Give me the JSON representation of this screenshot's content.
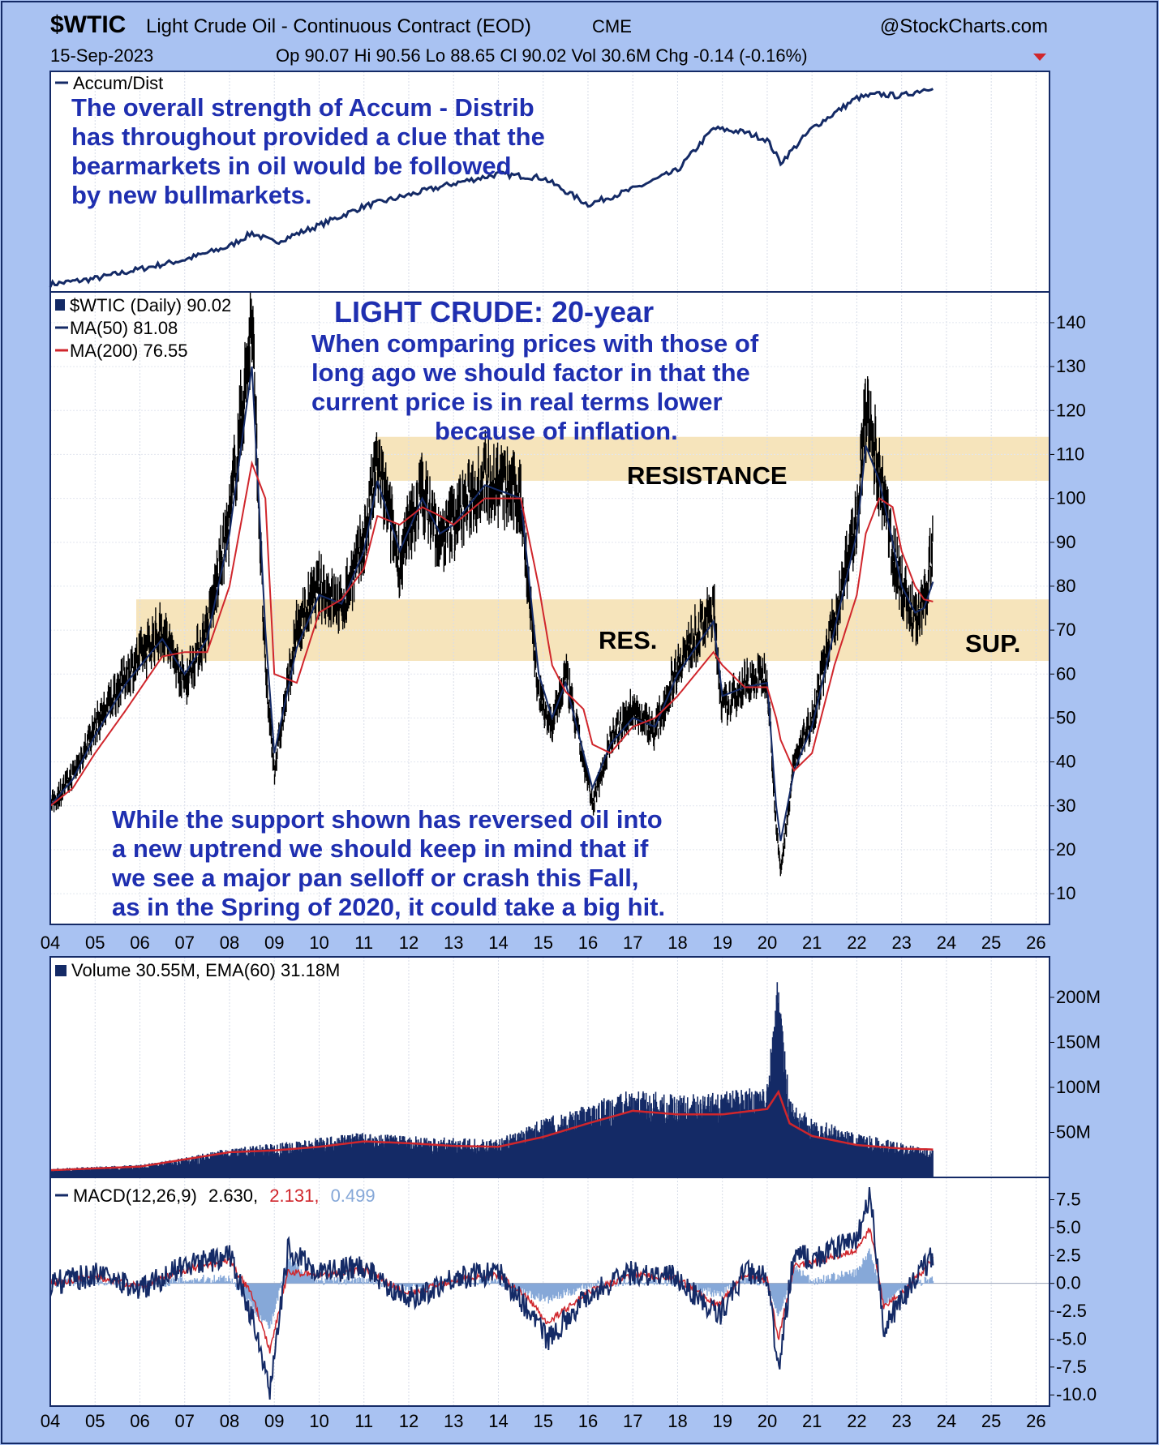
{
  "header": {
    "symbol": "$WTIC",
    "description": "Light Crude Oil - Continuous Contract (EOD)",
    "exchange": "CME",
    "brand": "@StockCharts.com",
    "date": "15-Sep-2023",
    "ohlc": "Op 90.07  Hi 90.56  Lo 88.65  Cl 90.02  Vol 30.6M  Chg -0.14 (-0.16%)"
  },
  "colors": {
    "background": "#a9c2f2",
    "panel": "#ffffff",
    "navy": "#142a66",
    "red": "#d0262c",
    "band": "#f6e4bb",
    "annotation": "#1f2fb0",
    "macd_hist": "#86a8d8"
  },
  "panels": {
    "accum": {
      "legend": "Accum/Dist",
      "note": [
        "The overall strength of Accum - Distrib",
        "has throughout provided a clue that the",
        "bearmarkets in oil would be followed",
        "by new bullmarkets."
      ]
    },
    "price": {
      "legend_main": "$WTIC (Daily) 90.02",
      "legend_ma50": "MA(50) 81.08",
      "legend_ma200": "MA(200) 76.55",
      "title": "LIGHT CRUDE: 20-year",
      "note_top": [
        "When comparing prices with those of",
        "long ago we should factor in that the",
        "current  price is in real terms lower",
        "because of inflation."
      ],
      "note_bottom": [
        "While the support shown has reversed oil into",
        "a new uptrend we should keep in mind that if",
        "we see a major pan selloff or crash this Fall,",
        "as in the Spring of 2020, it could take a big hit."
      ],
      "zone_resistance": "RESISTANCE",
      "zone_res": "RES.",
      "zone_sup": "SUP."
    },
    "volume": {
      "legend": "Volume 30.55M, EMA(60) 31.18M"
    },
    "macd": {
      "legend_name": "MACD(12,26,9)",
      "legend_v1": "2.630,",
      "legend_v2": "2.131,",
      "legend_v3": "0.499"
    }
  },
  "chart_data": [
    {
      "type": "line",
      "panel": "Accum/Dist",
      "x": [
        2004,
        2005,
        2006,
        2007,
        2008,
        2008.5,
        2009,
        2010,
        2011,
        2012,
        2013,
        2014,
        2015,
        2016,
        2017,
        2018,
        2018.8,
        2019.5,
        2020,
        2020.3,
        2021,
        2022,
        2022.5,
        2023,
        2023.7
      ],
      "series": [
        {
          "name": "Accum/Dist",
          "values": [
            0,
            3,
            8,
            13,
            20,
            27,
            22,
            31,
            41,
            47,
            53,
            58,
            56,
            42,
            50,
            60,
            82,
            80,
            76,
            64,
            82,
            98,
            100,
            99,
            104
          ]
        }
      ],
      "ylim": [
        -4,
        112
      ]
    },
    {
      "type": "line",
      "panel": "$WTIC (Daily)",
      "x": [
        2004,
        2004.5,
        2005,
        2005.7,
        2006.5,
        2007,
        2007.5,
        2008,
        2008.5,
        2008.8,
        2009,
        2009.5,
        2010,
        2010.5,
        2011,
        2011.3,
        2011.8,
        2012.3,
        2012.7,
        2013,
        2013.7,
        2014.5,
        2014.9,
        2015.2,
        2015.5,
        2015.9,
        2016.1,
        2016.5,
        2017,
        2017.5,
        2018,
        2018.8,
        2019,
        2019.5,
        2020,
        2020.2,
        2020.3,
        2020.6,
        2021,
        2021.5,
        2022,
        2022.2,
        2022.5,
        2022.8,
        2023,
        2023.3,
        2023.5,
        2023.7
      ],
      "series": [
        {
          "name": "$WTIC",
          "values": [
            30,
            37,
            48,
            60,
            70,
            58,
            70,
            95,
            140,
            60,
            38,
            70,
            80,
            75,
            90,
            108,
            85,
            102,
            90,
            95,
            105,
            100,
            55,
            48,
            60,
            40,
            30,
            45,
            52,
            47,
            62,
            75,
            52,
            58,
            60,
            25,
            15,
            40,
            50,
            72,
            95,
            120,
            105,
            88,
            80,
            72,
            75,
            90
          ]
        },
        {
          "name": "MA(50)",
          "values": [
            30,
            36,
            46,
            58,
            68,
            60,
            68,
            92,
            130,
            70,
            42,
            66,
            78,
            76,
            88,
            104,
            88,
            100,
            92,
            94,
            103,
            100,
            60,
            50,
            58,
            42,
            34,
            44,
            50,
            48,
            60,
            72,
            55,
            57,
            58,
            30,
            22,
            38,
            48,
            70,
            92,
            112,
            104,
            90,
            80,
            74,
            75,
            81
          ]
        },
        {
          "name": "MA(200)",
          "values": [
            30,
            34,
            42,
            52,
            64,
            65,
            65,
            80,
            108,
            100,
            60,
            58,
            74,
            77,
            84,
            96,
            94,
            98,
            96,
            94,
            100,
            100,
            80,
            62,
            56,
            52,
            44,
            42,
            48,
            50,
            55,
            65,
            62,
            57,
            57,
            50,
            45,
            38,
            42,
            62,
            78,
            92,
            100,
            98,
            88,
            80,
            77,
            76.5
          ]
        }
      ],
      "yticks": [
        10,
        20,
        30,
        40,
        50,
        60,
        70,
        80,
        90,
        100,
        110,
        120,
        130,
        140
      ],
      "ylim": [
        3,
        147
      ],
      "bands": [
        {
          "label": "RESISTANCE",
          "low": 104,
          "high": 114
        },
        {
          "label": "RES.",
          "low": 63,
          "high": 77
        }
      ]
    },
    {
      "type": "bar",
      "panel": "Volume",
      "x": [
        2004,
        2005,
        2006,
        2007,
        2008,
        2009,
        2010,
        2011,
        2012,
        2013,
        2014,
        2015,
        2016,
        2017,
        2018,
        2019,
        2020,
        2020.25,
        2020.5,
        2021,
        2022,
        2023,
        2023.7
      ],
      "series": [
        {
          "name": "Volume",
          "values": [
            10,
            12,
            14,
            22,
            33,
            38,
            44,
            50,
            46,
            44,
            42,
            66,
            82,
            100,
            92,
            95,
            104,
            230,
            88,
            66,
            50,
            38,
            31
          ]
        },
        {
          "name": "EMA(60)",
          "values": [
            8,
            10,
            12,
            20,
            28,
            30,
            34,
            40,
            38,
            35,
            34,
            45,
            60,
            74,
            70,
            70,
            76,
            95,
            60,
            46,
            36,
            32,
            31
          ]
        }
      ],
      "yticks": [
        50,
        100,
        150,
        200
      ],
      "ytick_labels": [
        "50M",
        "100M",
        "150M",
        "200M"
      ],
      "ylim": [
        0,
        245
      ]
    },
    {
      "type": "line",
      "panel": "MACD",
      "x": [
        2004,
        2005,
        2006,
        2007,
        2008,
        2008.5,
        2008.9,
        2009.3,
        2010,
        2011,
        2012,
        2013,
        2014,
        2014.7,
        2015.1,
        2016,
        2017,
        2018,
        2018.9,
        2019.5,
        2020,
        2020.25,
        2020.6,
        2021,
        2022,
        2022.3,
        2022.6,
        2023,
        2023.7
      ],
      "series": [
        {
          "name": "MACD",
          "values": [
            0,
            0.8,
            -0.5,
            1.5,
            2.5,
            -3,
            -10,
            3,
            1,
            1.5,
            -1.5,
            0.5,
            1,
            -2.5,
            -5,
            -1,
            1,
            0.5,
            -3,
            1,
            0.5,
            -8,
            3,
            2,
            4,
            8,
            -4,
            -1.5,
            2.63
          ]
        },
        {
          "name": "Signal",
          "values": [
            0,
            0.6,
            -0.3,
            1.2,
            2,
            -1,
            -6,
            1,
            0.8,
            1.2,
            -1,
            0.3,
            0.8,
            -1.5,
            -3.5,
            -0.8,
            0.8,
            0.4,
            -2,
            0.8,
            0.3,
            -5,
            1.5,
            1.8,
            3,
            5,
            -2,
            -1,
            2.131
          ]
        }
      ],
      "histogram_final": 0.499,
      "yticks": [
        -10,
        -7.5,
        -5,
        -2.5,
        0,
        2.5,
        5,
        7.5
      ],
      "ytick_labels": [
        "-10.0",
        "-7.5",
        "-5.0",
        "-2.5",
        "0.0",
        "2.5",
        "5.0",
        "7.5"
      ],
      "ylim": [
        -11,
        9.5
      ]
    },
    {
      "type": "axis",
      "panel": "time axis",
      "categories": [
        "04",
        "05",
        "06",
        "07",
        "08",
        "09",
        "10",
        "11",
        "12",
        "13",
        "14",
        "15",
        "16",
        "17",
        "18",
        "19",
        "20",
        "21",
        "22",
        "23",
        "24",
        "25",
        "26"
      ],
      "xlim": [
        2004,
        2026.3
      ]
    }
  ]
}
